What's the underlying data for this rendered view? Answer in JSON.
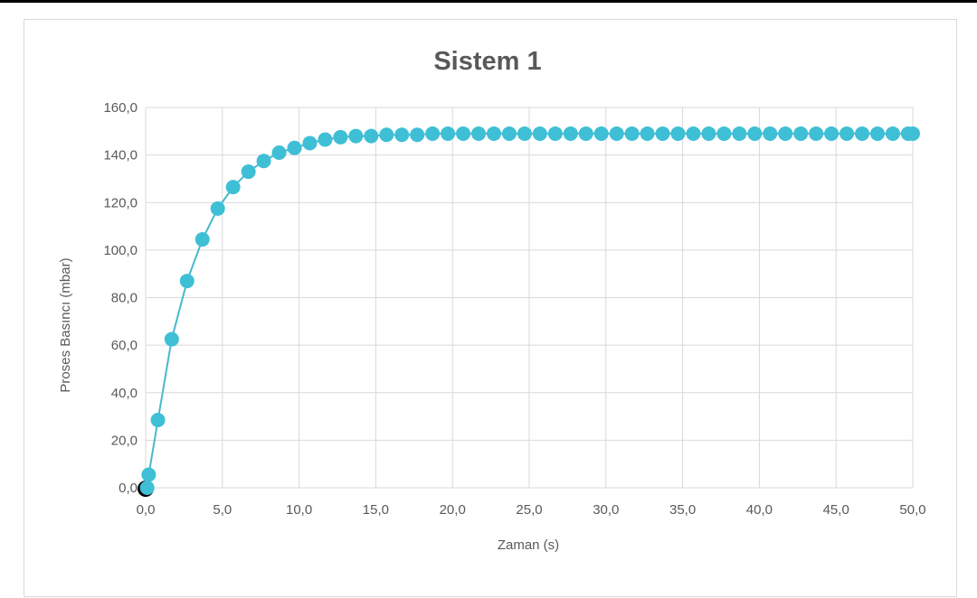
{
  "chart_data": {
    "type": "scatter",
    "title": "Sistem 1",
    "xlabel": "Zaman (s)",
    "ylabel": "Proses Basıncı (mbar)",
    "xlim": [
      0,
      50
    ],
    "ylim": [
      0,
      160
    ],
    "xticks": [
      "0,0",
      "5,0",
      "10,0",
      "15,0",
      "20,0",
      "25,0",
      "30,0",
      "35,0",
      "40,0",
      "45,0",
      "50,0"
    ],
    "yticks": [
      "0,0",
      "20,0",
      "40,0",
      "60,0",
      "80,0",
      "100,0",
      "120,0",
      "140,0",
      "160,0"
    ],
    "grid": true,
    "legend": "none",
    "colors": {
      "series": "#3ebfd6",
      "line": "#49b8cc",
      "start_marker": "#000000",
      "grid": "#d9d9d9"
    },
    "start_point": {
      "x": 0.0,
      "y": 0.0
    },
    "series": [
      {
        "x": [
          0.1,
          0.2,
          0.8,
          1.7,
          2.7,
          3.7,
          4.7,
          5.7,
          6.7,
          7.7,
          8.7,
          9.7,
          10.7,
          11.7,
          12.7,
          13.7,
          14.7,
          15.7,
          16.7,
          17.7,
          18.7,
          19.7,
          20.7,
          21.7,
          22.7,
          23.7,
          24.7,
          25.7,
          26.7,
          27.7,
          28.7,
          29.7,
          30.7,
          31.7,
          32.7,
          33.7,
          34.7,
          35.7,
          36.7,
          37.7,
          38.7,
          39.7,
          40.7,
          41.7,
          42.7,
          43.7,
          44.7,
          45.7,
          46.7,
          47.7,
          48.7,
          49.7,
          50.0
        ],
        "y": [
          0.0,
          5.5,
          28.5,
          62.5,
          87.0,
          104.5,
          117.5,
          126.5,
          133.0,
          137.5,
          141.0,
          143.0,
          145.0,
          146.5,
          147.5,
          148.0,
          148.0,
          148.5,
          148.5,
          148.5,
          149.0,
          149.0,
          149.0,
          149.0,
          149.0,
          149.0,
          149.0,
          149.0,
          149.0,
          149.0,
          149.0,
          149.0,
          149.0,
          149.0,
          149.0,
          149.0,
          149.0,
          149.0,
          149.0,
          149.0,
          149.0,
          149.0,
          149.0,
          149.0,
          149.0,
          149.0,
          149.0,
          149.0,
          149.0,
          149.0,
          149.0,
          149.0,
          149.0
        ]
      }
    ]
  }
}
